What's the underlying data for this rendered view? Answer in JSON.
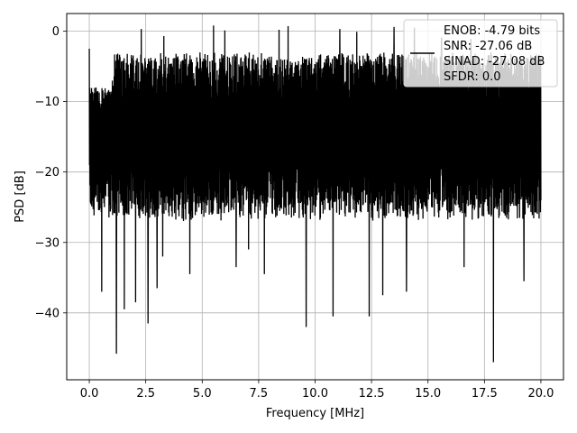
{
  "chart_data": {
    "type": "line",
    "title": "",
    "xlabel": "Frequency [MHz]",
    "ylabel": "PSD [dB]",
    "xlim": [
      -1.0,
      21.0
    ],
    "ylim": [
      -49.5,
      2.5
    ],
    "x_ticks": [
      0.0,
      2.5,
      5.0,
      7.5,
      10.0,
      12.5,
      15.0,
      17.5,
      20.0
    ],
    "x_tick_labels": [
      "0.0",
      "2.5",
      "5.0",
      "7.5",
      "10.0",
      "12.5",
      "15.0",
      "17.5",
      "20.0"
    ],
    "y_ticks": [
      0,
      -10,
      -20,
      -30,
      -40
    ],
    "y_tick_labels": [
      "0",
      "−10",
      "−20",
      "−30",
      "−40"
    ],
    "grid": true,
    "legend_position": "top-right",
    "legend_lines": [
      "ENOB: -4.79 bits",
      "SNR: -27.06 dB",
      "SINAD: -27.08 dB",
      "SFDR: 0.0"
    ],
    "series": [
      {
        "color": "#000000",
        "x_range": [
          0.0,
          20.0
        ],
        "num_points": 2000,
        "typical_max": -3.0,
        "typical_min": -27.0,
        "spikes": [
          {
            "x": 0.0,
            "y": -2.5
          },
          {
            "x": 0.55,
            "y": -37.0
          },
          {
            "x": 1.2,
            "y": -45.8
          },
          {
            "x": 1.55,
            "y": -39.5
          },
          {
            "x": 2.05,
            "y": -38.5
          },
          {
            "x": 2.6,
            "y": -41.5
          },
          {
            "x": 3.0,
            "y": -36.5
          },
          {
            "x": 3.25,
            "y": -32.0
          },
          {
            "x": 4.45,
            "y": -34.5
          },
          {
            "x": 6.5,
            "y": -33.5
          },
          {
            "x": 7.05,
            "y": -31.0
          },
          {
            "x": 7.75,
            "y": -34.5
          },
          {
            "x": 9.6,
            "y": -42.0
          },
          {
            "x": 10.8,
            "y": -40.5
          },
          {
            "x": 12.4,
            "y": -40.5
          },
          {
            "x": 13.0,
            "y": -37.5
          },
          {
            "x": 14.05,
            "y": -37.0
          },
          {
            "x": 16.6,
            "y": -33.5
          },
          {
            "x": 17.9,
            "y": -47.0
          },
          {
            "x": 19.25,
            "y": -35.5
          },
          {
            "x": 2.3,
            "y": 0.3
          },
          {
            "x": 3.3,
            "y": -0.7
          },
          {
            "x": 5.5,
            "y": 0.8
          },
          {
            "x": 6.0,
            "y": 0.1
          },
          {
            "x": 8.4,
            "y": 0.2
          },
          {
            "x": 8.8,
            "y": 0.7
          },
          {
            "x": 11.1,
            "y": 0.3
          },
          {
            "x": 11.85,
            "y": -0.1
          },
          {
            "x": 13.5,
            "y": 0.6
          },
          {
            "x": 14.4,
            "y": 0.5
          },
          {
            "x": 15.6,
            "y": -0.9
          },
          {
            "x": 16.9,
            "y": -1.1
          }
        ]
      }
    ]
  }
}
